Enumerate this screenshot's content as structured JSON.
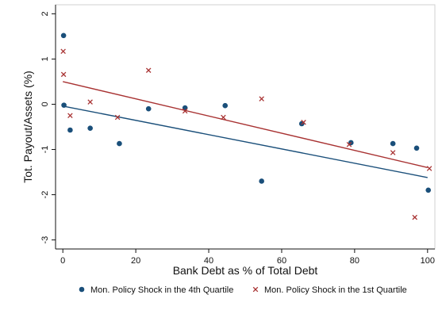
{
  "chart_data": {
    "type": "scatter",
    "xlabel": "Bank Debt as % of Total Debt",
    "ylabel": "Tot. Payout/Assets (%)",
    "xlim": [
      -2,
      102
    ],
    "ylim": [
      -3.2,
      2.2
    ],
    "xticks": [
      0,
      20,
      40,
      60,
      80,
      100
    ],
    "yticks": [
      2,
      1,
      0,
      -1,
      -2,
      -3
    ],
    "grid": false,
    "legend_position": "bottom",
    "series": [
      {
        "name": "Mon. Policy Shock in the 4th Quartile",
        "marker": "circle",
        "color": "#1a4f7a",
        "points": [
          {
            "x": 0.2,
            "y": 1.52
          },
          {
            "x": 0.3,
            "y": -0.02
          },
          {
            "x": 2,
            "y": -0.57
          },
          {
            "x": 7.5,
            "y": -0.53
          },
          {
            "x": 15.5,
            "y": -0.87
          },
          {
            "x": 23.5,
            "y": -0.1
          },
          {
            "x": 33.5,
            "y": -0.08
          },
          {
            "x": 44.5,
            "y": -0.03
          },
          {
            "x": 54.5,
            "y": -1.7
          },
          {
            "x": 65.5,
            "y": -0.43
          },
          {
            "x": 79,
            "y": -0.85
          },
          {
            "x": 90.5,
            "y": -0.87
          },
          {
            "x": 97,
            "y": -0.97
          },
          {
            "x": 100.2,
            "y": -1.9
          }
        ],
        "fit": {
          "x": [
            0,
            100
          ],
          "y": [
            -0.04,
            -1.62
          ]
        }
      },
      {
        "name": "Mon. Policy Shock in the 1st Quartile",
        "marker": "x",
        "color": "#a83232",
        "points": [
          {
            "x": 0.1,
            "y": 1.17
          },
          {
            "x": 0.2,
            "y": 0.66
          },
          {
            "x": 2,
            "y": -0.25
          },
          {
            "x": 7.5,
            "y": 0.05
          },
          {
            "x": 15,
            "y": -0.29
          },
          {
            "x": 23.5,
            "y": 0.75
          },
          {
            "x": 33.5,
            "y": -0.15
          },
          {
            "x": 44,
            "y": -0.29
          },
          {
            "x": 54.5,
            "y": 0.12
          },
          {
            "x": 66,
            "y": -0.4
          },
          {
            "x": 78.5,
            "y": -0.89
          },
          {
            "x": 90.5,
            "y": -1.07
          },
          {
            "x": 96.5,
            "y": -2.5
          },
          {
            "x": 100.5,
            "y": -1.42
          }
        ],
        "fit": {
          "x": [
            0,
            100
          ],
          "y": [
            0.5,
            -1.4
          ]
        }
      }
    ]
  }
}
